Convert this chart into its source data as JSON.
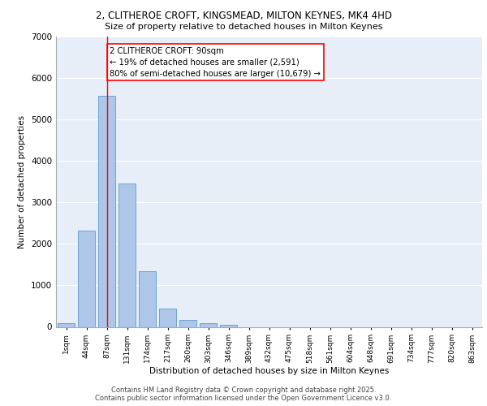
{
  "title_line1": "2, CLITHEROE CROFT, KINGSMEAD, MILTON KEYNES, MK4 4HD",
  "title_line2": "Size of property relative to detached houses in Milton Keynes",
  "xlabel": "Distribution of detached houses by size in Milton Keynes",
  "ylabel": "Number of detached properties",
  "categories": [
    "1sqm",
    "44sqm",
    "87sqm",
    "131sqm",
    "174sqm",
    "217sqm",
    "260sqm",
    "303sqm",
    "346sqm",
    "389sqm",
    "432sqm",
    "475sqm",
    "518sqm",
    "561sqm",
    "604sqm",
    "648sqm",
    "691sqm",
    "734sqm",
    "777sqm",
    "820sqm",
    "863sqm"
  ],
  "bar_heights": [
    80,
    2320,
    5580,
    3460,
    1340,
    450,
    175,
    95,
    50,
    0,
    0,
    0,
    0,
    0,
    0,
    0,
    0,
    0,
    0,
    0,
    0
  ],
  "bar_color": "#aec6e8",
  "bar_edge_color": "#5b9bd5",
  "vline_x_index": 2,
  "vline_color": "red",
  "annotation_text": "2 CLITHEROE CROFT: 90sqm\n← 19% of detached houses are smaller (2,591)\n80% of semi-detached houses are larger (10,679) →",
  "annotation_box_color": "white",
  "annotation_box_edge_color": "red",
  "ylim": [
    0,
    7000
  ],
  "yticks": [
    0,
    1000,
    2000,
    3000,
    4000,
    5000,
    6000,
    7000
  ],
  "background_color": "#e8eef8",
  "grid_color": "white",
  "footnote_line1": "Contains HM Land Registry data © Crown copyright and database right 2025.",
  "footnote_line2": "Contains public sector information licensed under the Open Government Licence v3.0."
}
